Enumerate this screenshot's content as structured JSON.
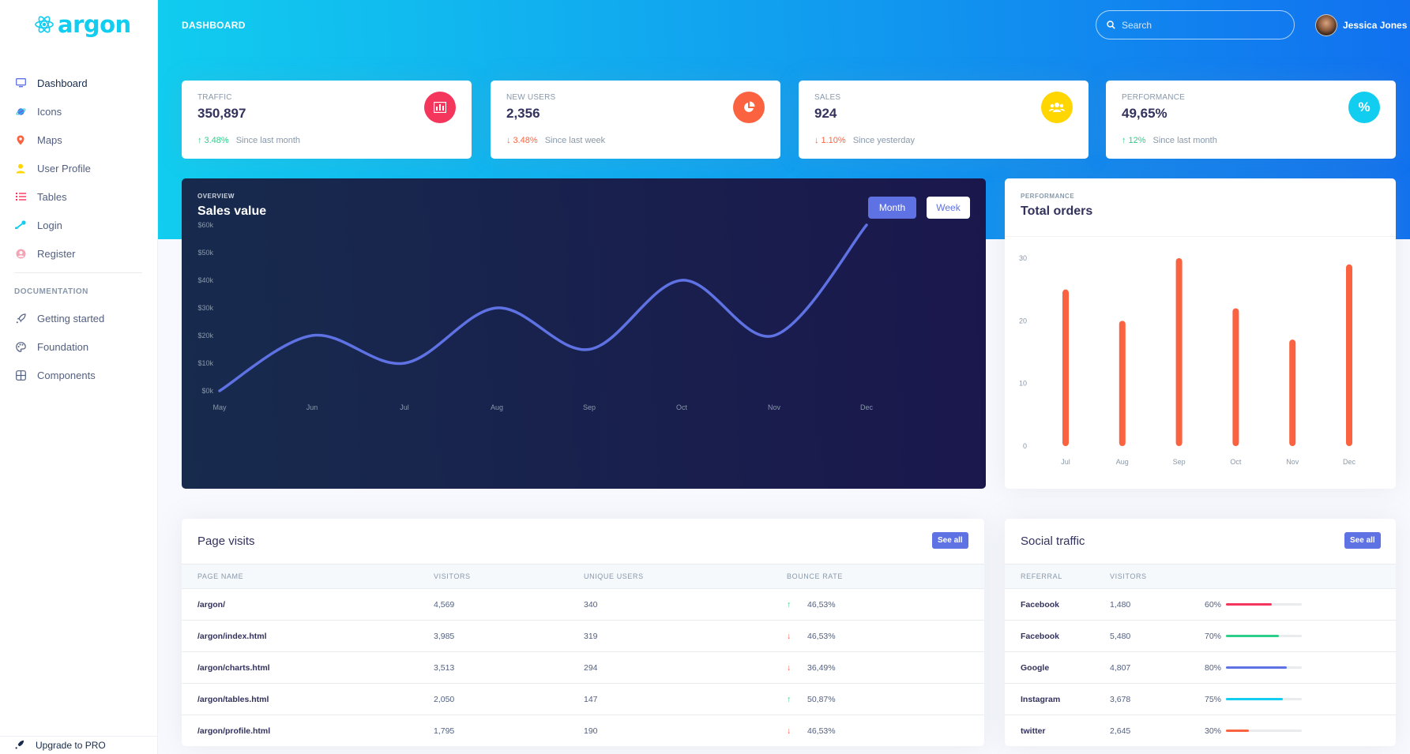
{
  "app": {
    "logo_text": "argon",
    "page_title": "DASHBOARD"
  },
  "sidebar": {
    "items": [
      {
        "label": "Dashboard",
        "icon": "monitor-icon",
        "color": "#5e72e4",
        "active": true
      },
      {
        "label": "Icons",
        "icon": "planet-icon",
        "color": "#5e72e4"
      },
      {
        "label": "Maps",
        "icon": "pin-icon",
        "color": "#fb6340"
      },
      {
        "label": "User Profile",
        "icon": "user-icon",
        "color": "#ffd600"
      },
      {
        "label": "Tables",
        "icon": "bullet-list-icon",
        "color": "#f5365c"
      },
      {
        "label": "Login",
        "icon": "key-icon",
        "color": "#11cdef"
      },
      {
        "label": "Register",
        "icon": "circle-user-icon",
        "color": "#f3a4b5"
      }
    ],
    "doc_heading": "DOCUMENTATION",
    "doc_items": [
      {
        "label": "Getting started",
        "icon": "spaceship-icon"
      },
      {
        "label": "Foundation",
        "icon": "palette-icon"
      },
      {
        "label": "Components",
        "icon": "ui-components-icon"
      }
    ],
    "upgrade_label": "Upgrade to PRO"
  },
  "header": {
    "search_placeholder": "Search",
    "user_name": "Jessica Jones"
  },
  "stats": [
    {
      "title": "TRAFFIC",
      "value": "350,897",
      "icon": "bar-chart-icon",
      "icon_color": "#f5365c",
      "trend": "up",
      "change": "3.48%",
      "since": "Since last month"
    },
    {
      "title": "NEW USERS",
      "value": "2,356",
      "icon": "pie-chart-icon",
      "icon_color": "#fb6340",
      "trend": "down",
      "change": "3.48%",
      "since": "Since last week"
    },
    {
      "title": "SALES",
      "value": "924",
      "icon": "users-icon",
      "icon_color": "#ffd600",
      "trend": "down",
      "change": "1.10%",
      "since": "Since yesterday"
    },
    {
      "title": "PERFORMANCE",
      "value": "49,65%",
      "icon": "percent-icon",
      "icon_color": "#11cdef",
      "trend": "up",
      "change": "12%",
      "since": "Since last month"
    }
  ],
  "sales_card": {
    "overline": "OVERVIEW",
    "title": "Sales value",
    "btn_month": "Month",
    "btn_week": "Week"
  },
  "orders_card": {
    "overline": "PERFORMANCE",
    "title": "Total orders"
  },
  "chart_data": [
    {
      "type": "line",
      "x": [
        "May",
        "Jun",
        "Jul",
        "Aug",
        "Sep",
        "Oct",
        "Nov",
        "Dec"
      ],
      "series": [
        {
          "values": [
            0,
            20,
            10,
            30,
            15,
            40,
            20,
            60
          ]
        }
      ],
      "y_ticks": [
        "$0k",
        "$10k",
        "$20k",
        "$30k",
        "$40k",
        "$50k",
        "$60k"
      ],
      "ylim": [
        0,
        60
      ],
      "line_color": "#5e72e4",
      "grid": false
    },
    {
      "type": "bar",
      "categories": [
        "Jul",
        "Aug",
        "Sep",
        "Oct",
        "Nov",
        "Dec"
      ],
      "values": [
        25,
        20,
        30,
        22,
        17,
        29
      ],
      "y_ticks": [
        "0",
        "10",
        "20",
        "30"
      ],
      "ylim": [
        0,
        30
      ],
      "bar_color": "#fb6340",
      "grid": false
    }
  ],
  "page_visits": {
    "title": "Page visits",
    "see_all": "See all",
    "columns": [
      "PAGE NAME",
      "VISITORS",
      "UNIQUE USERS",
      "BOUNCE RATE"
    ],
    "rows": [
      {
        "page": "/argon/",
        "visitors": "4,569",
        "unique": "340",
        "trend": "up",
        "bounce": "46,53%"
      },
      {
        "page": "/argon/index.html",
        "visitors": "3,985",
        "unique": "319",
        "trend": "down",
        "bounce": "46,53%"
      },
      {
        "page": "/argon/charts.html",
        "visitors": "3,513",
        "unique": "294",
        "trend": "down",
        "bounce": "36,49%"
      },
      {
        "page": "/argon/tables.html",
        "visitors": "2,050",
        "unique": "147",
        "trend": "up",
        "bounce": "50,87%"
      },
      {
        "page": "/argon/profile.html",
        "visitors": "1,795",
        "unique": "190",
        "trend": "down",
        "bounce": "46,53%"
      }
    ]
  },
  "social_traffic": {
    "title": "Social traffic",
    "see_all": "See all",
    "columns": [
      "REFERRAL",
      "VISITORS",
      ""
    ],
    "rows": [
      {
        "referral": "Facebook",
        "visitors": "1,480",
        "pct": "60%",
        "value": 60,
        "color": "#f5365c"
      },
      {
        "referral": "Facebook",
        "visitors": "5,480",
        "pct": "70%",
        "value": 70,
        "color": "#2dce89"
      },
      {
        "referral": "Google",
        "visitors": "4,807",
        "pct": "80%",
        "value": 80,
        "color": "#5e72e4"
      },
      {
        "referral": "Instagram",
        "visitors": "3,678",
        "pct": "75%",
        "value": 75,
        "color": "#11cdef"
      },
      {
        "referral": "twitter",
        "visitors": "2,645",
        "pct": "30%",
        "value": 30,
        "color": "#fb6340"
      }
    ]
  }
}
